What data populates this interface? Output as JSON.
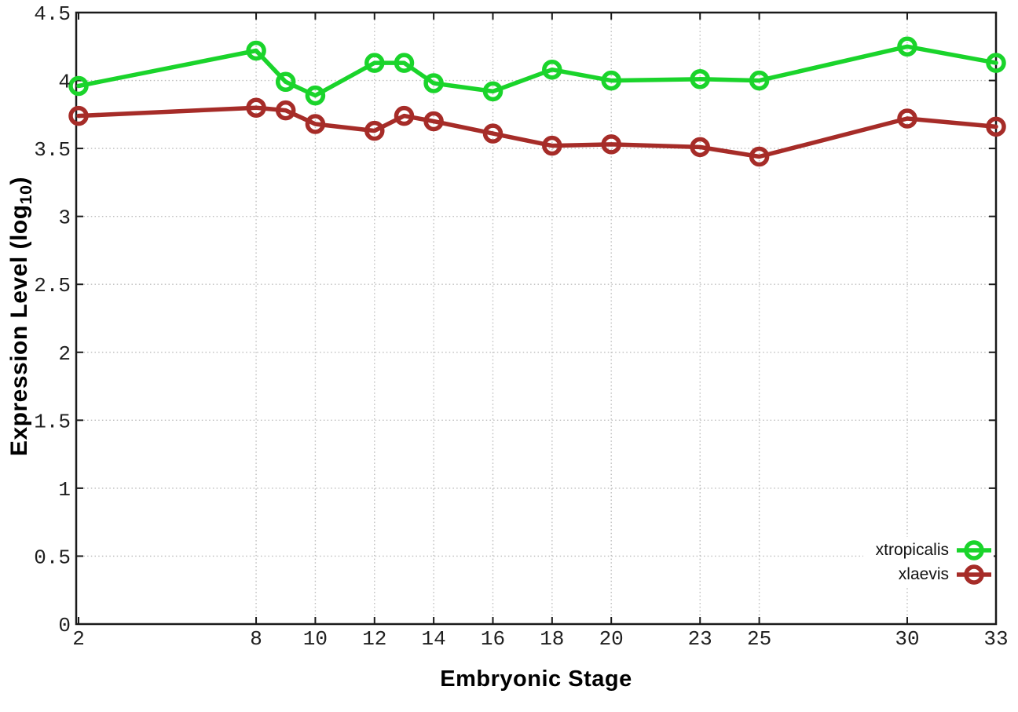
{
  "chart_data": {
    "type": "line",
    "title": "",
    "xlabel": "Embryonic Stage",
    "ylabel": "Expression Level (log10)",
    "ylabel_rich": {
      "prefix": "Expression Level (log",
      "sub": "10",
      "suffix": ")"
    },
    "x": [
      2,
      8,
      9,
      10,
      12,
      13,
      14,
      16,
      18,
      20,
      23,
      25,
      30,
      33
    ],
    "series": [
      {
        "name": "xtropicalis",
        "color": "#1ad42b",
        "marker": "open-circle",
        "values": [
          3.96,
          4.22,
          3.99,
          3.89,
          4.13,
          4.13,
          3.98,
          3.92,
          4.08,
          4.0,
          4.01,
          4.0,
          4.25,
          4.13
        ]
      },
      {
        "name": "xlaevis",
        "color": "#a62c28",
        "marker": "open-circle",
        "values": [
          3.74,
          3.8,
          3.78,
          3.68,
          3.63,
          3.74,
          3.7,
          3.61,
          3.52,
          3.53,
          3.51,
          3.44,
          3.72,
          3.66
        ]
      }
    ],
    "xlim": [
      2,
      33
    ],
    "ylim": [
      0,
      4.5
    ],
    "xticks": {
      "values": [
        2,
        8,
        10,
        12,
        14,
        16,
        18,
        20,
        23,
        25,
        30,
        33
      ],
      "labels": [
        "2",
        "8",
        "10",
        "12",
        "14",
        "16",
        "18",
        "20",
        "23",
        "25",
        "30",
        "33"
      ]
    },
    "yticks": {
      "values": [
        0,
        0.5,
        1,
        1.5,
        2,
        2.5,
        3,
        3.5,
        4,
        4.5
      ],
      "labels": [
        "0",
        "0.5",
        "1",
        "1.5",
        "2",
        "2.5",
        "3",
        "3.5",
        "4",
        "4.5"
      ]
    },
    "grid": true,
    "legend_position": "inside-bottom-right",
    "colors": {
      "axis": "#1a1a1a",
      "grid": "#bdbdbd",
      "tick_label": "#1f1f1f",
      "background": "#ffffff"
    }
  }
}
